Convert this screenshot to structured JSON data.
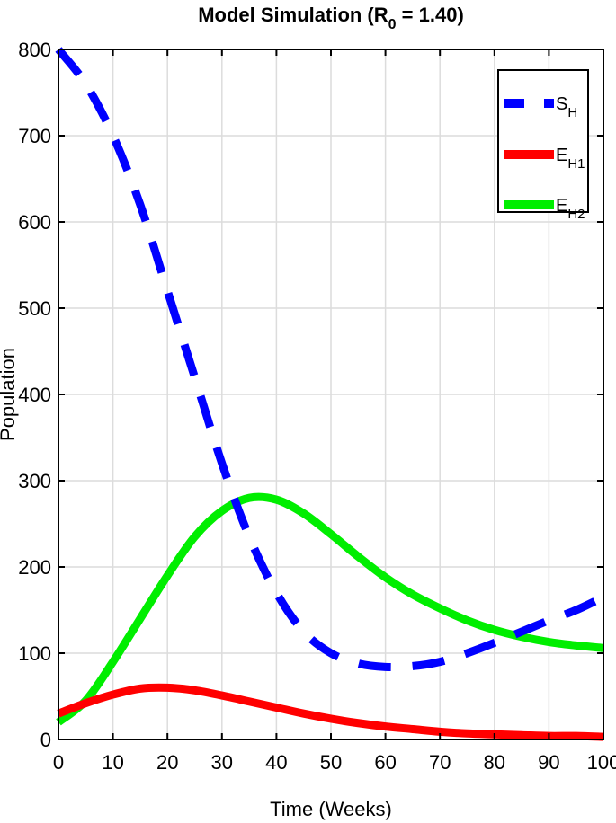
{
  "chart_data": {
    "type": "line",
    "title": "Model Simulation (R0 = 1.40)",
    "title_parts": {
      "prefix": "Model Simulation (R",
      "sub": "0",
      "suffix": " = 1.40)"
    },
    "xlabel": "Time (Weeks)",
    "ylabel": "Population",
    "xlim": [
      0,
      100
    ],
    "ylim": [
      0,
      800
    ],
    "xticks": [
      0,
      10,
      20,
      30,
      40,
      50,
      60,
      70,
      80,
      90,
      100
    ],
    "yticks": [
      0,
      100,
      200,
      300,
      400,
      500,
      600,
      700,
      800
    ],
    "grid": true,
    "legend_position": "upper right",
    "x": [
      0,
      5,
      10,
      15,
      20,
      25,
      30,
      35,
      40,
      45,
      50,
      55,
      60,
      65,
      70,
      75,
      80,
      85,
      90,
      95,
      100
    ],
    "series": [
      {
        "name": "S_H",
        "label_main": "S",
        "label_sub": "H",
        "color": "#0000ff",
        "style": "dashed",
        "values": [
          800,
          760,
          700,
          620,
          520,
          420,
          320,
          235,
          170,
          125,
          100,
          88,
          84,
          85,
          90,
          100,
          112,
          125,
          138,
          150,
          165
        ]
      },
      {
        "name": "E_H1",
        "label_main": "E",
        "label_sub": "H1",
        "color": "#ff0000",
        "style": "solid",
        "values": [
          30,
          42,
          52,
          59,
          60,
          57,
          51,
          44,
          37,
          30,
          24,
          19,
          15,
          12,
          9,
          7,
          6,
          5,
          4,
          4,
          3
        ]
      },
      {
        "name": "E_H2",
        "label_main": "E",
        "label_sub": "H2",
        "color": "#00ee00",
        "style": "solid",
        "values": [
          20,
          45,
          90,
          140,
          190,
          235,
          265,
          280,
          278,
          262,
          238,
          212,
          188,
          168,
          152,
          138,
          127,
          119,
          113,
          109,
          106
        ]
      }
    ]
  }
}
